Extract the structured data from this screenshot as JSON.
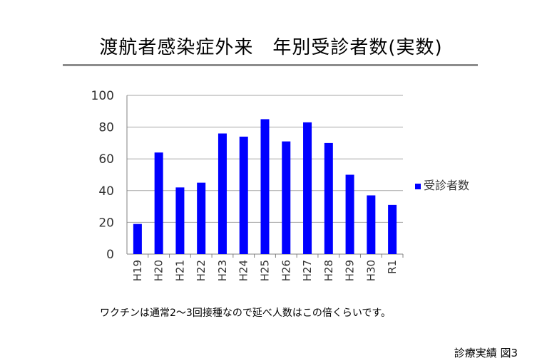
{
  "page": {
    "title": "渡航者感染症外来　年別受診者数(実数)",
    "note": "ワクチンは通常2～3回接種なので延べ人数はこの倍くらいです。",
    "caption": "診療実績 図3"
  },
  "chart_data": {
    "type": "bar",
    "categories": [
      "H19",
      "H20",
      "H21",
      "H22",
      "H23",
      "H24",
      "H25",
      "H26",
      "H27",
      "H28",
      "H29",
      "H30",
      "R1"
    ],
    "series": [
      {
        "name": "受診者数",
        "values": [
          19,
          64,
          42,
          45,
          76,
          74,
          85,
          71,
          83,
          70,
          50,
          37,
          31
        ],
        "color": "#0000ff"
      }
    ],
    "ylim": [
      0,
      100
    ],
    "yticks": [
      0,
      20,
      40,
      60,
      80,
      100
    ],
    "grid": true,
    "legend": "right",
    "xlabel": "",
    "ylabel": ""
  }
}
